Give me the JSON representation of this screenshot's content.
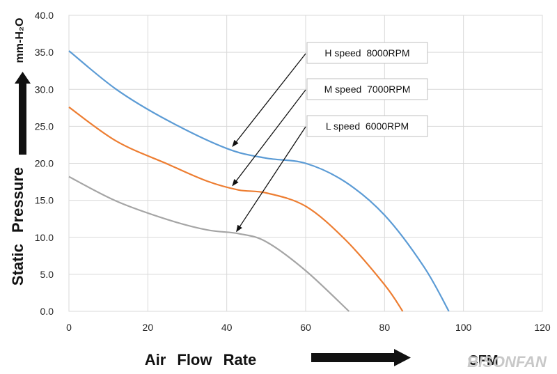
{
  "chart_data": {
    "type": "line",
    "xlabel": "Air Flow Rate",
    "ylabel": "Static Pressure",
    "x_unit": "CFM",
    "y_unit": "mm-H₂O",
    "xlim": [
      0,
      120
    ],
    "ylim": [
      0,
      40
    ],
    "x_ticks": [
      0,
      20,
      40,
      60,
      80,
      100,
      120
    ],
    "y_ticks": [
      "0.0",
      "5.0",
      "10.0",
      "15.0",
      "20.0",
      "25.0",
      "30.0",
      "35.0",
      "40.0"
    ],
    "grid": true,
    "series": [
      {
        "name": "H speed 8000RPM",
        "color": "#5b9bd5",
        "x": [
          0,
          12,
          25,
          40,
          50,
          60,
          70,
          80,
          90,
          96.3
        ],
        "y": [
          35.2,
          30.0,
          25.8,
          22.0,
          20.7,
          20.0,
          17.5,
          13.0,
          6.0,
          0
        ]
      },
      {
        "name": "M speed 7000RPM",
        "color": "#ed7d31",
        "x": [
          0,
          12,
          25,
          35,
          43,
          50,
          60,
          70,
          80,
          84.6
        ],
        "y": [
          27.6,
          23.0,
          19.9,
          17.6,
          16.4,
          16.0,
          14.2,
          9.7,
          3.6,
          0
        ]
      },
      {
        "name": "L speed 6000RPM",
        "color": "#a5a5a5",
        "x": [
          0,
          12,
          25,
          35,
          43,
          50,
          60,
          71
        ],
        "y": [
          18.2,
          14.9,
          12.4,
          11.0,
          10.5,
          9.4,
          5.5,
          0
        ]
      }
    ],
    "annotations": [
      {
        "label": "H speed  8000RPM",
        "target": [
          42,
          22.0
        ]
      },
      {
        "label": "M speed  7000RPM",
        "target": [
          42,
          16.7
        ]
      },
      {
        "label": "L speed  6000RPM",
        "target": [
          43,
          10.5
        ]
      }
    ]
  },
  "watermark": "BISONFAN"
}
